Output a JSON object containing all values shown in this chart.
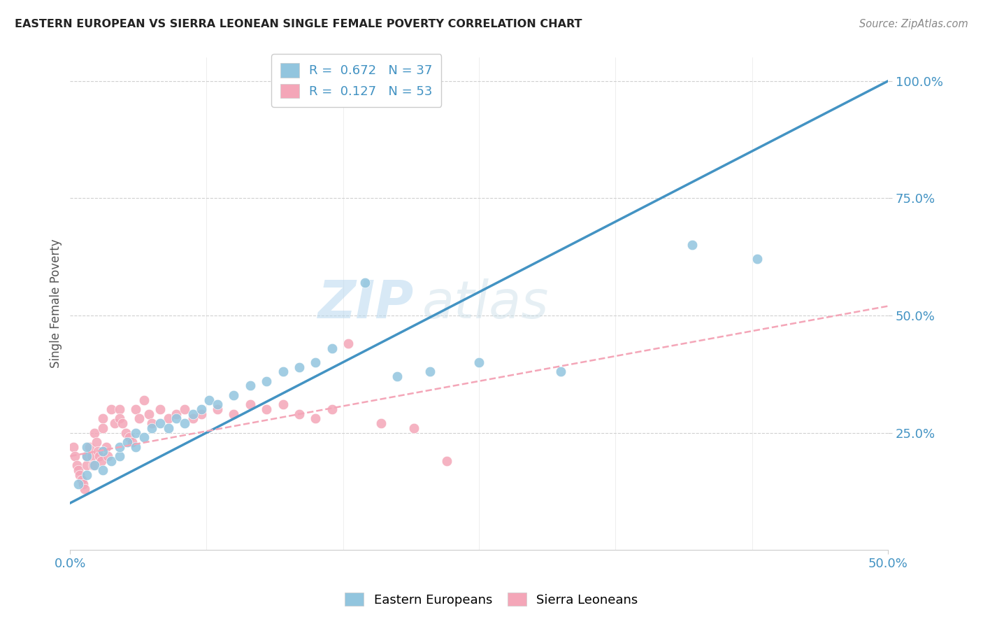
{
  "title": "EASTERN EUROPEAN VS SIERRA LEONEAN SINGLE FEMALE POVERTY CORRELATION CHART",
  "source": "Source: ZipAtlas.com",
  "ylabel": "Single Female Poverty",
  "xlim": [
    0.0,
    0.5
  ],
  "ylim": [
    0.0,
    1.05
  ],
  "x_ticks": [
    0.0,
    0.5
  ],
  "x_tick_labels": [
    "0.0%",
    "50.0%"
  ],
  "y_ticks": [
    0.25,
    0.5,
    0.75,
    1.0
  ],
  "y_tick_labels": [
    "25.0%",
    "50.0%",
    "75.0%",
    "100.0%"
  ],
  "legend_R1": "R =  0.672",
  "legend_N1": "N = 37",
  "legend_R2": "R =  0.127",
  "legend_N2": "N = 53",
  "color_blue": "#92c5de",
  "color_pink": "#f4a6b8",
  "color_blue_line": "#4393c3",
  "color_pink_line": "#f4a6b8",
  "watermark_zip": "ZIP",
  "watermark_atlas": "atlas",
  "blue_scatter_x": [
    0.005,
    0.01,
    0.01,
    0.01,
    0.015,
    0.02,
    0.02,
    0.025,
    0.03,
    0.03,
    0.035,
    0.04,
    0.04,
    0.045,
    0.05,
    0.055,
    0.06,
    0.065,
    0.07,
    0.075,
    0.08,
    0.085,
    0.09,
    0.1,
    0.11,
    0.12,
    0.13,
    0.14,
    0.15,
    0.16,
    0.18,
    0.2,
    0.22,
    0.25,
    0.3,
    0.38,
    0.42
  ],
  "blue_scatter_y": [
    0.14,
    0.16,
    0.2,
    0.22,
    0.18,
    0.17,
    0.21,
    0.19,
    0.2,
    0.22,
    0.23,
    0.22,
    0.25,
    0.24,
    0.26,
    0.27,
    0.26,
    0.28,
    0.27,
    0.29,
    0.3,
    0.32,
    0.31,
    0.33,
    0.35,
    0.36,
    0.38,
    0.39,
    0.4,
    0.43,
    0.57,
    0.37,
    0.38,
    0.4,
    0.38,
    0.65,
    0.62
  ],
  "pink_scatter_x": [
    0.002,
    0.003,
    0.004,
    0.005,
    0.006,
    0.007,
    0.008,
    0.009,
    0.01,
    0.01,
    0.012,
    0.013,
    0.014,
    0.015,
    0.016,
    0.017,
    0.018,
    0.019,
    0.02,
    0.02,
    0.022,
    0.023,
    0.025,
    0.027,
    0.03,
    0.03,
    0.032,
    0.034,
    0.036,
    0.038,
    0.04,
    0.042,
    0.045,
    0.048,
    0.05,
    0.055,
    0.06,
    0.065,
    0.07,
    0.075,
    0.08,
    0.09,
    0.1,
    0.11,
    0.12,
    0.13,
    0.14,
    0.15,
    0.16,
    0.17,
    0.19,
    0.21,
    0.23
  ],
  "pink_scatter_y": [
    0.22,
    0.2,
    0.18,
    0.17,
    0.16,
    0.15,
    0.14,
    0.13,
    0.2,
    0.18,
    0.22,
    0.2,
    0.18,
    0.25,
    0.23,
    0.21,
    0.2,
    0.19,
    0.28,
    0.26,
    0.22,
    0.2,
    0.3,
    0.27,
    0.3,
    0.28,
    0.27,
    0.25,
    0.24,
    0.23,
    0.3,
    0.28,
    0.32,
    0.29,
    0.27,
    0.3,
    0.28,
    0.29,
    0.3,
    0.28,
    0.29,
    0.3,
    0.29,
    0.31,
    0.3,
    0.31,
    0.29,
    0.28,
    0.3,
    0.44,
    0.27,
    0.26,
    0.19
  ],
  "blue_trend_x": [
    0.0,
    0.5
  ],
  "blue_trend_y": [
    0.1,
    1.0
  ],
  "pink_trend_x": [
    0.0,
    0.5
  ],
  "pink_trend_y": [
    0.2,
    0.52
  ]
}
